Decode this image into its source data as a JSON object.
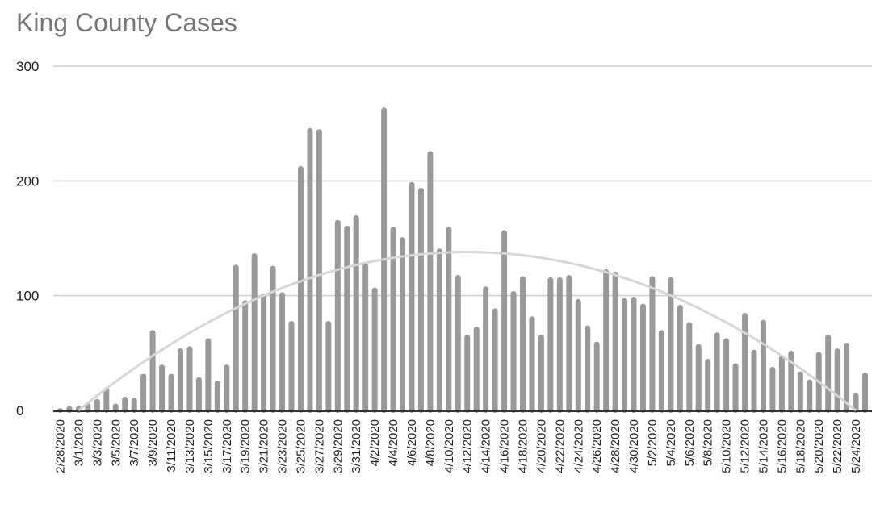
{
  "chart_data": {
    "type": "bar",
    "title": "King County Cases",
    "xlabel": "",
    "ylabel": "",
    "ylim": [
      0,
      300
    ],
    "yticks": [
      "0",
      "100",
      "200",
      "300"
    ],
    "grid": true,
    "legend": "none",
    "colors": {
      "bar": "#999999",
      "trend": "#d6d6d6",
      "grid": "#cccccc",
      "axis": "#333333",
      "title": "#757575"
    },
    "categories": [
      "2/28/2020",
      "2/29/2020",
      "3/1/2020",
      "3/2/2020",
      "3/3/2020",
      "3/4/2020",
      "3/5/2020",
      "3/6/2020",
      "3/7/2020",
      "3/8/2020",
      "3/9/2020",
      "3/10/2020",
      "3/11/2020",
      "3/12/2020",
      "3/13/2020",
      "3/14/2020",
      "3/15/2020",
      "3/16/2020",
      "3/17/2020",
      "3/18/2020",
      "3/19/2020",
      "3/20/2020",
      "3/21/2020",
      "3/22/2020",
      "3/23/2020",
      "3/24/2020",
      "3/25/2020",
      "3/26/2020",
      "3/27/2020",
      "3/28/2020",
      "3/29/2020",
      "3/30/2020",
      "3/31/2020",
      "4/1/2020",
      "4/2/2020",
      "4/3/2020",
      "4/4/2020",
      "4/5/2020",
      "4/6/2020",
      "4/7/2020",
      "4/8/2020",
      "4/9/2020",
      "4/10/2020",
      "4/11/2020",
      "4/12/2020",
      "4/13/2020",
      "4/14/2020",
      "4/15/2020",
      "4/16/2020",
      "4/17/2020",
      "4/18/2020",
      "4/19/2020",
      "4/20/2020",
      "4/21/2020",
      "4/22/2020",
      "4/23/2020",
      "4/24/2020",
      "4/25/2020",
      "4/26/2020",
      "4/27/2020",
      "4/28/2020",
      "4/29/2020",
      "4/30/2020",
      "5/1/2020",
      "5/2/2020",
      "5/3/2020",
      "5/4/2020",
      "5/5/2020",
      "5/6/2020",
      "5/7/2020",
      "5/8/2020",
      "5/9/2020",
      "5/10/2020",
      "5/11/2020",
      "5/12/2020",
      "5/13/2020",
      "5/14/2020",
      "5/15/2020",
      "5/16/2020",
      "5/17/2020",
      "5/18/2020",
      "5/19/2020",
      "5/20/2020",
      "5/21/2020",
      "5/22/2020",
      "5/23/2020",
      "5/24/2020",
      "5/25/2020"
    ],
    "values": [
      2,
      4,
      4,
      7,
      10,
      20,
      6,
      12,
      11,
      32,
      70,
      40,
      32,
      54,
      56,
      29,
      63,
      26,
      40,
      127,
      96,
      137,
      102,
      126,
      103,
      78,
      213,
      246,
      245,
      78,
      166,
      161,
      170,
      128,
      107,
      264,
      160,
      151,
      199,
      194,
      226,
      141,
      160,
      118,
      66,
      73,
      108,
      89,
      157,
      104,
      117,
      82,
      66,
      116,
      116,
      118,
      97,
      74,
      60,
      123,
      121,
      98,
      99,
      93,
      117,
      70,
      116,
      92,
      77,
      58,
      45,
      68,
      63,
      41,
      85,
      53,
      79,
      38,
      48,
      52,
      34,
      27,
      51,
      66,
      54,
      59,
      15,
      33
    ],
    "trendline": {
      "type": "polynomial",
      "degree": 2,
      "peak_value": 138,
      "peak_category": "4/12/2020",
      "zero_categories": [
        "3/1/2020",
        "5/24/2020"
      ]
    }
  }
}
